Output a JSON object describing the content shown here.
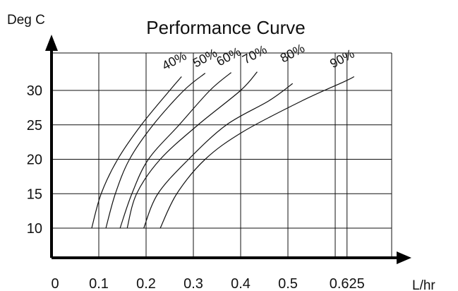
{
  "chart_data": {
    "type": "line",
    "title": "Performance Curve",
    "xlabel": "L/hr",
    "ylabel": "Deg C",
    "x_ticks": [
      0,
      0.1,
      0.2,
      0.3,
      0.4,
      0.5,
      0.625
    ],
    "x_tick_labels": [
      "0",
      "0.1",
      "0.2",
      "0.3",
      "0.4",
      "0.5",
      "0.625"
    ],
    "y_ticks": [
      10,
      15,
      20,
      25,
      30
    ],
    "y_tick_labels": [
      "10",
      "15",
      "20",
      "25",
      "30"
    ],
    "xlim": [
      0,
      0.7
    ],
    "ylim": [
      5,
      35
    ],
    "grid": true,
    "series": [
      {
        "name": "40%",
        "points": [
          [
            0.085,
            10
          ],
          [
            0.105,
            15
          ],
          [
            0.14,
            20
          ],
          [
            0.19,
            25
          ],
          [
            0.25,
            30
          ],
          [
            0.275,
            32
          ]
        ]
      },
      {
        "name": "50%",
        "points": [
          [
            0.115,
            10
          ],
          [
            0.135,
            15
          ],
          [
            0.165,
            20
          ],
          [
            0.215,
            25
          ],
          [
            0.28,
            30
          ],
          [
            0.325,
            32.5
          ]
        ]
      },
      {
        "name": "60%",
        "points": [
          [
            0.145,
            10
          ],
          [
            0.17,
            15
          ],
          [
            0.205,
            20
          ],
          [
            0.27,
            25
          ],
          [
            0.335,
            30
          ],
          [
            0.38,
            32.6
          ]
        ]
      },
      {
        "name": "70%",
        "points": [
          [
            0.16,
            10
          ],
          [
            0.18,
            15
          ],
          [
            0.23,
            20
          ],
          [
            0.31,
            25
          ],
          [
            0.4,
            30
          ],
          [
            0.435,
            32.7
          ]
        ]
      },
      {
        "name": "80%",
        "points": [
          [
            0.195,
            10
          ],
          [
            0.225,
            15
          ],
          [
            0.29,
            20
          ],
          [
            0.37,
            25
          ],
          [
            0.46,
            28.5
          ],
          [
            0.51,
            31
          ]
        ]
      },
      {
        "name": "90%",
        "points": [
          [
            0.23,
            10
          ],
          [
            0.265,
            15
          ],
          [
            0.325,
            20
          ],
          [
            0.405,
            24
          ],
          [
            0.53,
            28.5
          ],
          [
            0.62,
            31.3
          ],
          [
            0.64,
            32
          ]
        ]
      }
    ],
    "series_label_points": [
      [
        0.24,
        32.9
      ],
      [
        0.305,
        33.3
      ],
      [
        0.355,
        33.5
      ],
      [
        0.41,
        33.8
      ],
      [
        0.49,
        34.0
      ],
      [
        0.595,
        33.2
      ]
    ]
  }
}
